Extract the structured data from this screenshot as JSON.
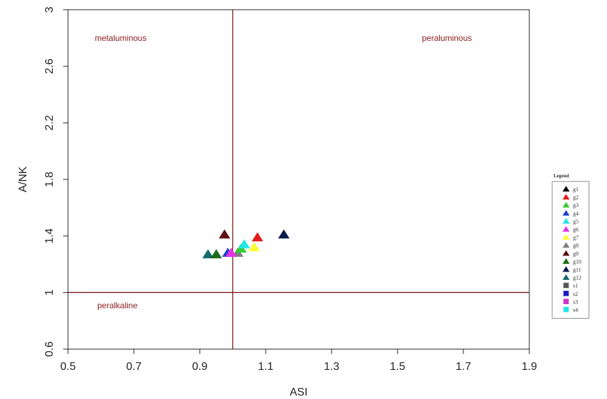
{
  "chart_data": {
    "type": "scatter",
    "xlabel": "ASI",
    "ylabel": "A/NK",
    "xlim": [
      0.5,
      1.9
    ],
    "ylim": [
      0.6,
      3.0
    ],
    "xticks": [
      "0.5",
      "0.7",
      "0.9",
      "1.1",
      "1.3",
      "1.5",
      "1.7",
      "1.9"
    ],
    "yticks": [
      "0.6",
      "1",
      "1.4",
      "1.8",
      "2.2",
      "2.6",
      "3"
    ],
    "grid": false,
    "divider_color": "#7a1a1a",
    "dividers": {
      "x": 1.0,
      "y": 1.0
    },
    "regions": [
      {
        "label": "metaluminous",
        "x": 0.66,
        "y": 2.78
      },
      {
        "label": "peraluminous",
        "x": 1.65,
        "y": 2.78
      },
      {
        "label": "peralkaline",
        "x": 0.65,
        "y": 0.89
      }
    ],
    "region_label_color": "#8b1a1a",
    "legend": {
      "title": "Legend",
      "placement": "right",
      "entries": [
        {
          "name": "g1",
          "color": "#000000",
          "marker": "triangle"
        },
        {
          "name": "g2",
          "color": "#e41a1c",
          "marker": "triangle"
        },
        {
          "name": "g3",
          "color": "#33cc33",
          "marker": "triangle"
        },
        {
          "name": "g4",
          "color": "#1f3fcc",
          "marker": "triangle"
        },
        {
          "name": "g5",
          "color": "#22e6e6",
          "marker": "triangle"
        },
        {
          "name": "g6",
          "color": "#e633e6",
          "marker": "triangle"
        },
        {
          "name": "g7",
          "color": "#ffff33",
          "marker": "triangle"
        },
        {
          "name": "g8",
          "color": "#7f7f7f",
          "marker": "triangle"
        },
        {
          "name": "g9",
          "color": "#5c1010",
          "marker": "triangle"
        },
        {
          "name": "g10",
          "color": "#1b6b1b",
          "marker": "triangle"
        },
        {
          "name": "g11",
          "color": "#0a1a4d",
          "marker": "triangle"
        },
        {
          "name": "g12",
          "color": "#136b6b",
          "marker": "triangle"
        },
        {
          "name": "s1",
          "color": "#555555",
          "marker": "square"
        },
        {
          "name": "s2",
          "color": "#1a1acc",
          "marker": "square"
        },
        {
          "name": "s3",
          "color": "#cc33cc",
          "marker": "square"
        },
        {
          "name": "s4",
          "color": "#22e6e6",
          "marker": "square"
        }
      ]
    },
    "points": [
      {
        "name": "g12",
        "x": 0.925,
        "y": 1.27
      },
      {
        "name": "g10",
        "x": 0.95,
        "y": 1.27
      },
      {
        "name": "g9",
        "x": 0.975,
        "y": 1.41
      },
      {
        "name": "g4",
        "x": 0.985,
        "y": 1.28
      },
      {
        "name": "g8",
        "x": 1.015,
        "y": 1.28
      },
      {
        "name": "g3",
        "x": 1.025,
        "y": 1.31
      },
      {
        "name": "g5",
        "x": 1.035,
        "y": 1.34
      },
      {
        "name": "g7",
        "x": 1.065,
        "y": 1.32
      },
      {
        "name": "g2",
        "x": 1.075,
        "y": 1.39
      },
      {
        "name": "g11",
        "x": 1.155,
        "y": 1.41
      },
      {
        "name": "g6",
        "x": 0.995,
        "y": 1.28
      }
    ]
  }
}
